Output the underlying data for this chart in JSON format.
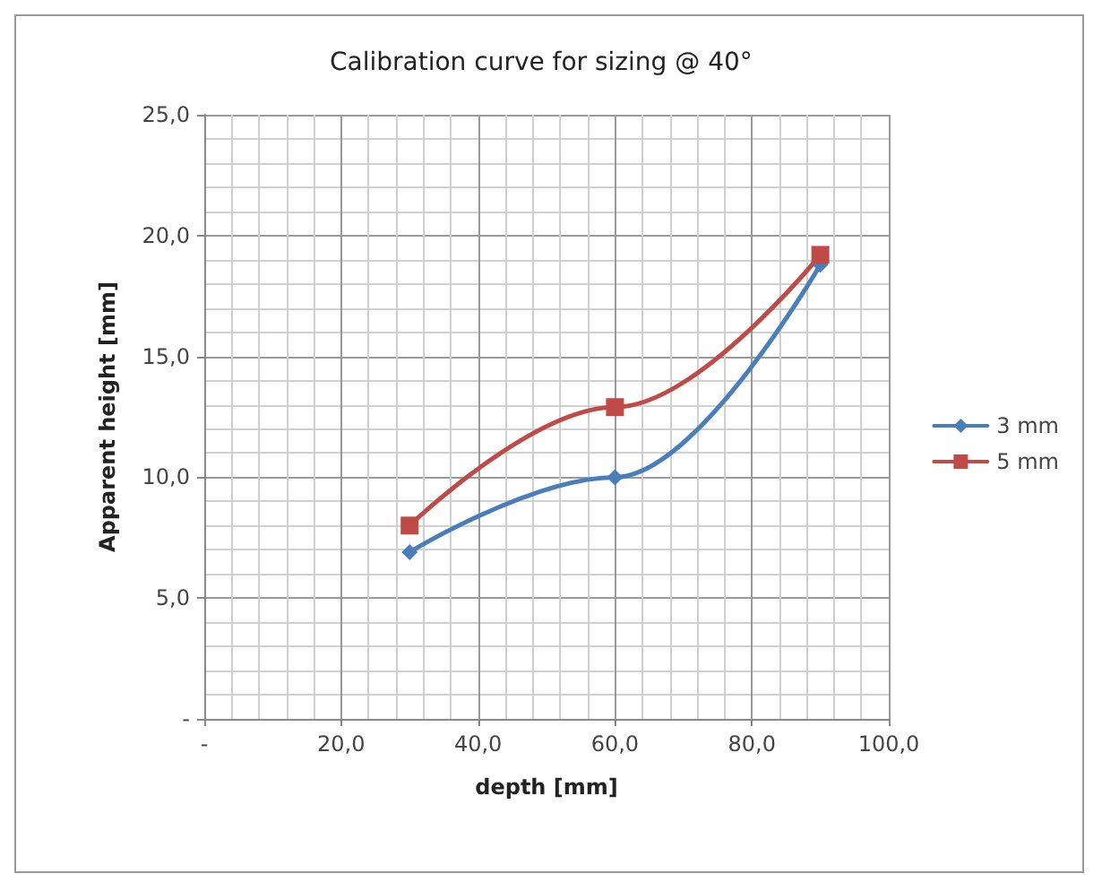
{
  "chart_data": {
    "type": "line",
    "title": "Calibration curve for sizing @ 40°",
    "xlabel": "depth [mm]",
    "ylabel": "Apparent height [mm]",
    "xlim": [
      0,
      100
    ],
    "xticks": [
      {
        "value": 0,
        "label": "-"
      },
      {
        "value": 20,
        "label": "20,0"
      },
      {
        "value": 40,
        "label": "40,0"
      },
      {
        "value": 60,
        "label": "60,0"
      },
      {
        "value": 80,
        "label": "80,0"
      },
      {
        "value": 100,
        "label": "100,0"
      }
    ],
    "ylim": [
      0,
      25
    ],
    "yticks": [
      {
        "value": 0,
        "label": "-"
      },
      {
        "value": 5,
        "label": "5,0"
      },
      {
        "value": 10,
        "label": "10,0"
      },
      {
        "value": 15,
        "label": "15,0"
      },
      {
        "value": 20,
        "label": "20,0"
      },
      {
        "value": 25,
        "label": "25,0"
      }
    ],
    "x": [
      30,
      60,
      90
    ],
    "series": [
      {
        "name": "3 mm",
        "color": "#4a7ebb",
        "marker": "diamond",
        "values": [
          6.9,
          10.0,
          18.8
        ]
      },
      {
        "name": "5 mm",
        "color": "#be4b48",
        "marker": "square",
        "values": [
          8.0,
          12.9,
          19.2
        ]
      }
    ],
    "grid": true,
    "legend": "right"
  }
}
